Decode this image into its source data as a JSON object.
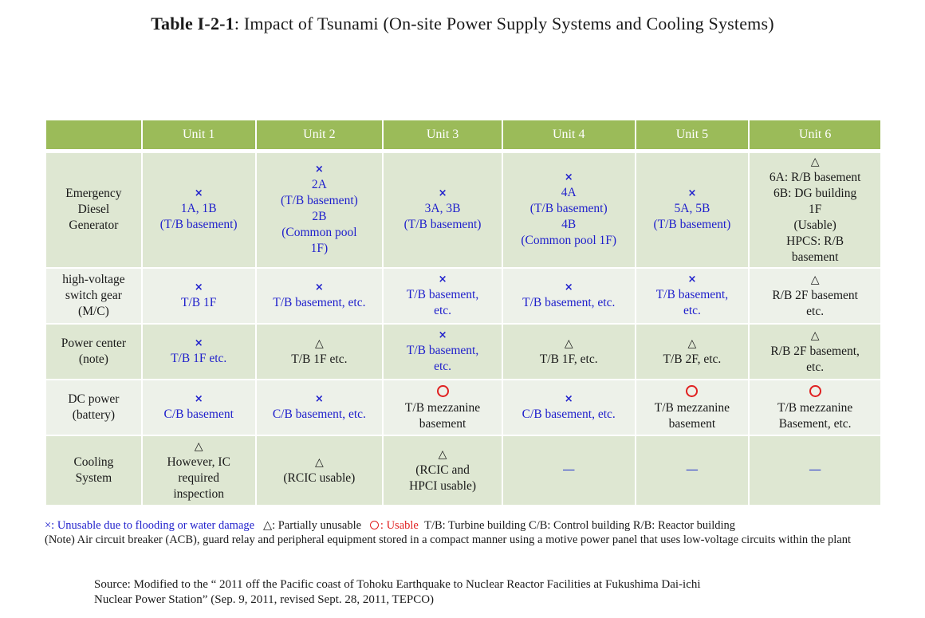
{
  "title": {
    "prefix": "Table  I-2-1",
    "text": ": Impact of Tsunami (On-site Power Supply Systems and Cooling Systems)"
  },
  "colors": {
    "header_green": "#9bbb59",
    "row_dark": "#dee7d2",
    "row_light": "#edf1e9",
    "unusable_blue": "#1f1fcc",
    "usable_red": "#e02020"
  },
  "table": {
    "columns": [
      "",
      "Unit 1",
      "Unit 2",
      "Unit 3",
      "Unit 4",
      "Unit 5",
      "Unit 6"
    ],
    "rows": [
      {
        "label": [
          "Emergency",
          "Diesel",
          "Generator"
        ],
        "cells": [
          {
            "status": "x",
            "color": "blue",
            "lines": [
              "1A, 1B",
              "(T/B basement)"
            ]
          },
          {
            "status": "x",
            "color": "blue",
            "lines": [
              "2A",
              "(T/B basement)",
              "2B",
              "(Common pool",
              "1F)"
            ]
          },
          {
            "status": "x",
            "color": "blue",
            "lines": [
              "3A, 3B",
              "(T/B basement)"
            ]
          },
          {
            "status": "x",
            "color": "blue",
            "lines": [
              "4A",
              "(T/B basement)",
              "4B",
              "(Common pool 1F)"
            ]
          },
          {
            "status": "x",
            "color": "blue",
            "lines": [
              "5A, 5B",
              "(T/B basement)"
            ]
          },
          {
            "status": "triangle",
            "color": "black",
            "lines": [
              "6A: R/B basement",
              "6B: DG building",
              "1F",
              "(Usable)",
              "HPCS: R/B",
              "basement"
            ]
          }
        ]
      },
      {
        "label": [
          "high-voltage",
          "switch gear",
          "(M/C)"
        ],
        "cells": [
          {
            "status": "x",
            "color": "blue",
            "lines": [
              "T/B 1F"
            ]
          },
          {
            "status": "x",
            "color": "blue",
            "lines": [
              "T/B basement, etc."
            ]
          },
          {
            "status": "x",
            "color": "blue",
            "lines": [
              "T/B basement,",
              "etc."
            ]
          },
          {
            "status": "x",
            "color": "blue",
            "lines": [
              "T/B basement, etc."
            ]
          },
          {
            "status": "x",
            "color": "blue",
            "lines": [
              "T/B basement,",
              "etc."
            ]
          },
          {
            "status": "triangle",
            "color": "black",
            "lines": [
              "R/B 2F basement",
              "etc."
            ]
          }
        ]
      },
      {
        "label": [
          "Power center",
          "(note)"
        ],
        "cells": [
          {
            "status": "x",
            "color": "blue",
            "lines": [
              "T/B 1F etc."
            ]
          },
          {
            "status": "triangle",
            "color": "black",
            "lines": [
              "T/B 1F etc."
            ]
          },
          {
            "status": "x",
            "color": "blue",
            "lines": [
              "T/B basement,",
              "etc."
            ]
          },
          {
            "status": "triangle",
            "color": "black",
            "lines": [
              "T/B 1F, etc."
            ]
          },
          {
            "status": "triangle",
            "color": "black",
            "lines": [
              "T/B 2F, etc."
            ]
          },
          {
            "status": "triangle",
            "color": "black",
            "lines": [
              "R/B 2F basement,",
              "etc."
            ]
          }
        ]
      },
      {
        "label": [
          "DC power",
          "(battery)"
        ],
        "cells": [
          {
            "status": "x",
            "color": "blue",
            "lines": [
              "C/B basement"
            ]
          },
          {
            "status": "x",
            "color": "blue",
            "lines": [
              "C/B basement, etc."
            ]
          },
          {
            "status": "circle",
            "color": "black",
            "lines": [
              "T/B mezzanine",
              "basement"
            ]
          },
          {
            "status": "x",
            "color": "blue",
            "lines": [
              "C/B basement, etc."
            ]
          },
          {
            "status": "circle",
            "color": "black",
            "lines": [
              "T/B mezzanine",
              "basement"
            ]
          },
          {
            "status": "circle",
            "color": "black",
            "lines": [
              "T/B mezzanine",
              "Basement, etc."
            ]
          }
        ]
      },
      {
        "label": [
          "Cooling",
          "System"
        ],
        "cells": [
          {
            "status": "triangle",
            "color": "black",
            "lines": [
              "However, IC",
              "required",
              "inspection"
            ]
          },
          {
            "status": "triangle",
            "color": "black",
            "lines": [
              "(RCIC usable)"
            ]
          },
          {
            "status": "triangle",
            "color": "black",
            "lines": [
              "(RCIC and",
              "HPCI usable)"
            ]
          },
          {
            "status": "dash",
            "color": "blue",
            "lines": []
          },
          {
            "status": "dash",
            "color": "blue",
            "lines": []
          },
          {
            "status": "dash",
            "color": "blue",
            "lines": []
          }
        ]
      }
    ]
  },
  "symbols": {
    "x": "×",
    "triangle": "△",
    "dash": "—"
  },
  "legend": {
    "unusable": "×: Unusable due to flooding or water damage",
    "partial": "△: Partially unusable",
    "usable": ": Usable",
    "abbrev": "T/B: Turbine building  C/B: Control building  R/B: Reactor building",
    "note": "(Note) Air circuit breaker (ACB), guard relay and peripheral equipment stored in a compact manner using a motive power panel that uses low-voltage circuits within the plant"
  },
  "source": {
    "line1": "Source: Modified to the “ 2011 off the Pacific coast of Tohoku Earthquake to Nuclear Reactor  Facilities at Fukushima Dai-ichi",
    "line2": "Nuclear Power Station” (Sep. 9, 2011, revised Sept. 28, 2011, TEPCO)"
  }
}
